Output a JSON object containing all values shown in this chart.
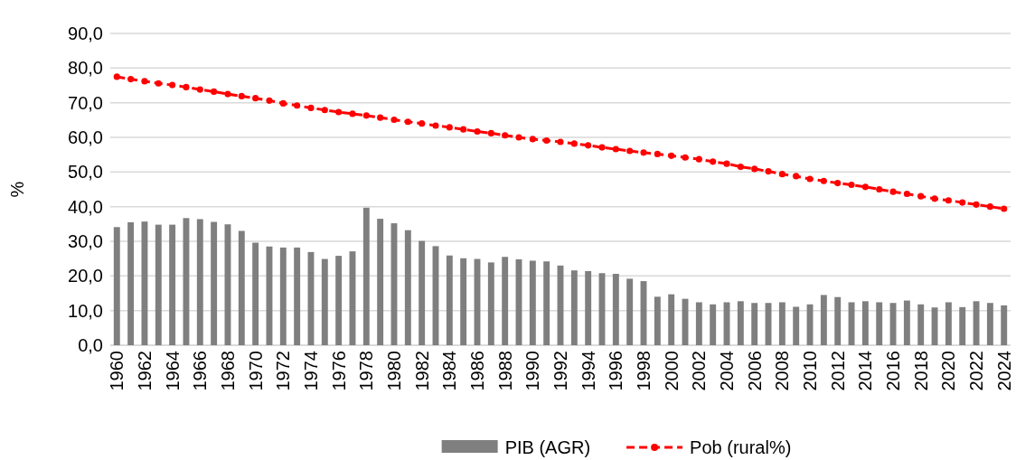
{
  "chart_data": {
    "type": "bar",
    "ylabel": "%",
    "categories": [
      "1960",
      null,
      "1962",
      null,
      "1964",
      null,
      "1966",
      null,
      "1968",
      null,
      "1970",
      null,
      "1972",
      null,
      "1974",
      null,
      "1976",
      null,
      "1978",
      null,
      "1980",
      null,
      "1982",
      null,
      "1984",
      null,
      "1986",
      null,
      "1988",
      null,
      "1990",
      null,
      "1992",
      null,
      "1994",
      null,
      "1996",
      null,
      "1998",
      null,
      "2000",
      null,
      "2002",
      null,
      "2004",
      null,
      "2006",
      null,
      "2008",
      null,
      "2010",
      null,
      "2012",
      null,
      "2014",
      null,
      "2016",
      null,
      "2018",
      null,
      "2020",
      null,
      "2022",
      null,
      "2024"
    ],
    "series": [
      {
        "name": "PIB (AGR)",
        "color": "#7f7f7f",
        "values": [
          34.1,
          35.5,
          35.7,
          34.8,
          34.8,
          36.7,
          36.4,
          35.6,
          34.9,
          33.0,
          29.6,
          28.5,
          28.2,
          28.2,
          26.9,
          24.9,
          25.8,
          27.1,
          39.7,
          36.5,
          35.2,
          33.2,
          30.1,
          28.6,
          25.9,
          25.1,
          24.9,
          23.9,
          25.5,
          24.8,
          24.4,
          24.2,
          23.0,
          21.6,
          21.4,
          20.8,
          20.6,
          19.2,
          18.5,
          14.0,
          14.7,
          13.4,
          12.4,
          11.8,
          12.4,
          12.7,
          12.2,
          12.2,
          12.4,
          11.1,
          11.8,
          14.5,
          13.9,
          12.4,
          12.7,
          12.4,
          12.2,
          12.9,
          11.8,
          10.9,
          12.4,
          11.0,
          12.7,
          12.2,
          11.5
        ]
      },
      {
        "name": "Pob (rural%)",
        "type": "line",
        "color": "#ff0000",
        "marker": "circle",
        "line_style": "dashed",
        "values": [
          77.5,
          76.8,
          76.2,
          75.6,
          75.1,
          74.5,
          73.8,
          73.2,
          72.5,
          71.9,
          71.3,
          70.6,
          69.8,
          69.2,
          68.5,
          67.9,
          67.3,
          66.8,
          66.3,
          65.7,
          65.1,
          64.5,
          64.0,
          63.4,
          62.9,
          62.3,
          61.7,
          61.2,
          60.6,
          60.0,
          59.5,
          59.1,
          58.7,
          58.2,
          57.7,
          57.1,
          56.6,
          56.1,
          55.6,
          55.2,
          54.7,
          54.2,
          53.7,
          53.0,
          52.4,
          51.5,
          50.9,
          50.2,
          49.4,
          48.8,
          48.0,
          47.4,
          46.8,
          46.3,
          45.7,
          45.0,
          44.3,
          43.7,
          43.0,
          42.3,
          41.8,
          41.2,
          40.6,
          40.0,
          39.4
        ]
      }
    ],
    "ylim": [
      0,
      90
    ],
    "yticks": [
      {
        "value": 0,
        "label": "0,0"
      },
      {
        "value": 10,
        "label": "10,0"
      },
      {
        "value": 20,
        "label": "20,0"
      },
      {
        "value": 30,
        "label": "30,0"
      },
      {
        "value": 40,
        "label": "40,0"
      },
      {
        "value": 50,
        "label": "50,0"
      },
      {
        "value": 60,
        "label": "60,0"
      },
      {
        "value": 70,
        "label": "70,0"
      },
      {
        "value": 80,
        "label": "80,0"
      },
      {
        "value": 90,
        "label": "90,0"
      }
    ],
    "grid": "y",
    "legend": "bottom"
  }
}
